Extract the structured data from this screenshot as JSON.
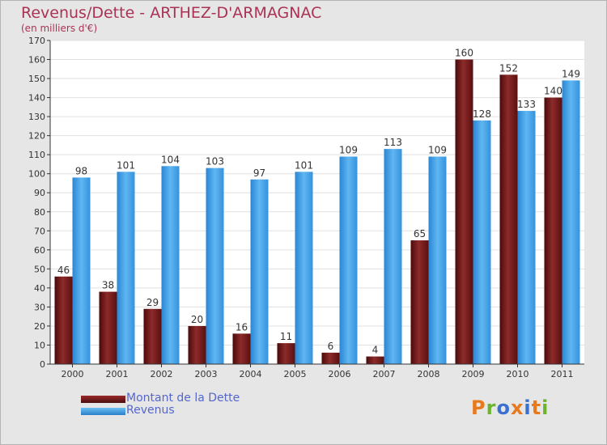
{
  "chart_data": {
    "type": "bar",
    "title": "Revenus/Dette - ARTHEZ-D'ARMAGNAC",
    "subtitle": "(en milliers d'€)",
    "categories": [
      "2000",
      "2001",
      "2002",
      "2003",
      "2004",
      "2005",
      "2006",
      "2007",
      "2008",
      "2009",
      "2010",
      "2011"
    ],
    "series": [
      {
        "name": "Montant de la Dette",
        "values": [
          46,
          38,
          29,
          20,
          16,
          11,
          6,
          4,
          65,
          160,
          152,
          140
        ],
        "color": "#7a1f1f"
      },
      {
        "name": "Revenus",
        "values": [
          98,
          101,
          104,
          103,
          97,
          101,
          109,
          113,
          109,
          128,
          133,
          149
        ],
        "color": "#4aa3e8"
      }
    ],
    "ylim": [
      0,
      170
    ],
    "yticks": [
      0,
      10,
      20,
      30,
      40,
      50,
      60,
      70,
      80,
      90,
      100,
      110,
      120,
      130,
      140,
      150,
      160,
      170
    ],
    "grid": true,
    "legend": "bottom-left"
  },
  "logo": {
    "text": "Proxiti",
    "colors": [
      "#e87a1e",
      "#6bb42e",
      "#3b6fd0",
      "#e87a1e",
      "#3b6fd0",
      "#e87a1e",
      "#6bb42e"
    ]
  }
}
